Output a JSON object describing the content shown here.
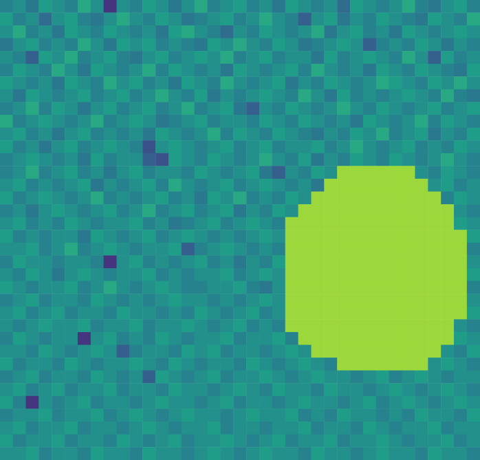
{
  "chart_data": {
    "type": "heatmap",
    "color": "viridis",
    "zlim": [
      0,
      20
    ],
    "tick_labels": false,
    "values": [
      [
        9,
        10,
        8,
        11,
        10,
        9,
        12,
        10,
        3,
        10,
        9,
        11,
        10,
        8,
        10,
        12,
        9,
        10,
        11,
        9,
        10,
        8,
        11,
        10,
        9,
        10,
        7,
        11,
        10,
        9,
        10,
        12,
        9,
        8,
        10,
        11,
        9
      ],
      [
        11,
        9,
        10,
        7,
        10,
        11,
        9,
        8,
        10,
        12,
        10,
        9,
        11,
        10,
        8,
        9,
        10,
        11,
        9,
        10,
        12,
        10,
        9,
        6,
        10,
        11,
        8,
        10,
        9,
        11,
        10,
        9,
        8,
        11,
        10,
        9,
        12
      ],
      [
        10,
        12,
        9,
        10,
        8,
        11,
        10,
        9,
        11,
        10,
        9,
        10,
        8,
        11,
        12,
        10,
        9,
        7,
        10,
        9,
        11,
        10,
        9,
        10,
        12,
        8,
        10,
        11,
        9,
        10,
        8,
        11,
        10,
        9,
        10,
        11,
        10
      ],
      [
        8,
        10,
        11,
        9,
        10,
        9,
        12,
        10,
        8,
        11,
        10,
        11,
        9,
        10,
        9,
        8,
        11,
        10,
        12,
        10,
        9,
        11,
        10,
        8,
        9,
        10,
        11,
        10,
        6,
        9,
        10,
        9,
        11,
        10,
        8,
        10,
        9
      ],
      [
        10,
        9,
        6,
        11,
        10,
        12,
        9,
        10,
        11,
        9,
        8,
        10,
        11,
        9,
        10,
        11,
        10,
        12,
        9,
        10,
        11,
        9,
        10,
        10,
        8,
        11,
        9,
        10,
        11,
        10,
        9,
        12,
        10,
        6,
        11,
        9,
        10
      ],
      [
        9,
        11,
        10,
        9,
        12,
        10,
        8,
        11,
        10,
        9,
        10,
        12,
        9,
        11,
        10,
        9,
        10,
        8,
        11,
        10,
        9,
        10,
        11,
        9,
        12,
        10,
        9,
        10,
        8,
        11,
        10,
        9,
        11,
        10,
        9,
        8,
        11
      ],
      [
        11,
        10,
        9,
        10,
        8,
        11,
        10,
        9,
        12,
        10,
        11,
        9,
        10,
        8,
        11,
        10,
        9,
        12,
        10,
        9,
        10,
        11,
        8,
        10,
        9,
        11,
        10,
        9,
        10,
        12,
        11,
        10,
        9,
        11,
        10,
        12,
        10
      ],
      [
        10,
        8,
        11,
        10,
        9,
        10,
        11,
        9,
        10,
        11,
        9,
        10,
        12,
        10,
        9,
        11,
        8,
        10,
        9,
        10,
        11,
        10,
        9,
        12,
        10,
        8,
        11,
        9,
        10,
        9,
        10,
        11,
        10,
        9,
        12,
        9,
        8
      ],
      [
        9,
        10,
        12,
        9,
        11,
        10,
        8,
        10,
        11,
        9,
        10,
        11,
        9,
        10,
        12,
        9,
        10,
        11,
        8,
        6,
        10,
        9,
        11,
        10,
        9,
        10,
        12,
        10,
        9,
        11,
        10,
        9,
        10,
        11,
        9,
        10,
        11
      ],
      [
        12,
        9,
        10,
        11,
        10,
        9,
        10,
        12,
        9,
        10,
        11,
        10,
        8,
        9,
        10,
        11,
        9,
        10,
        10,
        9,
        11,
        10,
        9,
        11,
        10,
        9,
        10,
        8,
        11,
        10,
        9,
        10,
        12,
        9,
        11,
        10,
        9
      ],
      [
        10,
        11,
        9,
        10,
        8,
        10,
        11,
        9,
        10,
        9,
        10,
        8,
        11,
        10,
        9,
        10,
        12,
        9,
        11,
        10,
        9,
        11,
        10,
        9,
        8,
        10,
        9,
        11,
        10,
        12,
        9,
        10,
        11,
        8,
        10,
        9,
        11
      ],
      [
        11,
        9,
        10,
        8,
        10,
        11,
        9,
        10,
        11,
        10,
        9,
        5,
        10,
        11,
        10,
        9,
        10,
        11,
        9,
        10,
        11,
        9,
        10,
        10,
        11,
        9,
        10,
        12,
        10,
        9,
        10,
        11,
        9,
        10,
        9,
        11,
        10
      ],
      [
        9,
        10,
        11,
        10,
        9,
        10,
        8,
        11,
        9,
        10,
        10,
        6,
        5,
        11,
        10,
        9,
        11,
        10,
        9,
        10,
        12,
        10,
        9,
        11,
        8,
        10,
        9,
        11,
        10,
        9,
        11,
        10,
        9,
        10,
        12,
        10,
        9
      ],
      [
        9,
        10,
        12,
        9,
        10,
        11,
        9,
        10,
        8,
        10,
        11,
        9,
        10,
        10,
        9,
        11,
        10,
        9,
        10,
        11,
        8,
        6,
        10,
        9,
        11,
        10,
        17,
        17,
        17,
        17,
        17,
        17,
        10,
        9,
        11,
        10,
        9
      ],
      [
        10,
        11,
        9,
        10,
        9,
        10,
        11,
        8,
        10,
        9,
        10,
        11,
        9,
        12,
        10,
        9,
        10,
        11,
        9,
        10,
        11,
        10,
        9,
        10,
        8,
        17,
        17,
        17,
        17,
        17,
        17,
        17,
        17,
        10,
        11,
        9,
        10
      ],
      [
        11,
        9,
        10,
        11,
        10,
        9,
        10,
        12,
        9,
        10,
        9,
        10,
        11,
        9,
        10,
        8,
        11,
        10,
        12,
        9,
        10,
        9,
        11,
        10,
        17,
        17,
        17,
        17,
        17,
        17,
        17,
        17,
        17,
        17,
        9,
        11,
        10
      ],
      [
        9,
        10,
        8,
        10,
        11,
        10,
        9,
        10,
        11,
        9,
        10,
        12,
        9,
        10,
        11,
        9,
        10,
        11,
        8,
        10,
        9,
        11,
        10,
        17,
        17,
        17,
        17,
        17,
        17,
        17,
        17,
        17,
        17,
        17,
        17,
        10,
        9
      ],
      [
        10,
        11,
        9,
        10,
        9,
        11,
        10,
        9,
        10,
        10,
        11,
        9,
        10,
        8,
        9,
        10,
        11,
        9,
        10,
        11,
        10,
        9,
        17,
        17,
        17,
        17,
        17,
        17,
        17,
        17,
        17,
        17,
        17,
        17,
        17,
        11,
        10
      ],
      [
        11,
        9,
        10,
        9,
        10,
        10,
        8,
        11,
        10,
        9,
        10,
        11,
        9,
        10,
        11,
        10,
        9,
        10,
        9,
        10,
        11,
        10,
        17,
        17,
        17,
        17,
        17,
        17,
        17,
        17,
        17,
        17,
        17,
        17,
        17,
        17,
        11
      ],
      [
        10,
        10,
        11,
        9,
        10,
        12,
        9,
        10,
        11,
        10,
        9,
        10,
        10,
        11,
        6,
        9,
        10,
        11,
        10,
        9,
        10,
        9,
        17,
        17,
        17,
        17,
        17,
        17,
        17,
        17,
        17,
        17,
        17,
        17,
        17,
        17,
        9
      ],
      [
        9,
        11,
        10,
        10,
        9,
        10,
        10,
        9,
        3,
        10,
        11,
        9,
        10,
        9,
        10,
        11,
        9,
        10,
        8,
        10,
        9,
        11,
        17,
        17,
        17,
        17,
        17,
        17,
        17,
        17,
        17,
        17,
        17,
        17,
        17,
        17,
        10
      ],
      [
        10,
        9,
        11,
        10,
        8,
        10,
        11,
        10,
        9,
        10,
        10,
        11,
        9,
        10,
        9,
        10,
        10,
        11,
        9,
        10,
        11,
        10,
        17,
        17,
        17,
        17,
        17,
        17,
        17,
        17,
        17,
        17,
        17,
        17,
        17,
        17,
        11
      ],
      [
        11,
        10,
        9,
        10,
        10,
        11,
        9,
        10,
        12,
        10,
        9,
        10,
        11,
        10,
        9,
        9,
        10,
        10,
        11,
        9,
        8,
        10,
        17,
        17,
        17,
        17,
        17,
        17,
        17,
        17,
        17,
        17,
        17,
        17,
        17,
        17,
        9
      ],
      [
        9,
        10,
        11,
        9,
        10,
        10,
        9,
        11,
        10,
        9,
        10,
        9,
        10,
        11,
        10,
        10,
        9,
        10,
        9,
        10,
        11,
        10,
        17,
        17,
        17,
        17,
        17,
        17,
        17,
        17,
        17,
        17,
        17,
        17,
        17,
        17,
        10
      ],
      [
        10,
        11,
        9,
        10,
        11,
        9,
        10,
        10,
        9,
        11,
        10,
        10,
        9,
        10,
        9,
        11,
        10,
        9,
        10,
        11,
        9,
        10,
        17,
        17,
        17,
        17,
        17,
        17,
        17,
        17,
        17,
        17,
        17,
        17,
        17,
        17,
        11
      ],
      [
        10,
        9,
        10,
        11,
        10,
        10,
        11,
        9,
        10,
        10,
        11,
        9,
        10,
        10,
        11,
        10,
        9,
        10,
        11,
        9,
        10,
        9,
        17,
        17,
        17,
        17,
        17,
        17,
        17,
        17,
        17,
        17,
        17,
        17,
        17,
        10,
        9
      ],
      [
        9,
        11,
        10,
        9,
        10,
        10,
        3,
        10,
        11,
        9,
        10,
        9,
        11,
        10,
        9,
        10,
        10,
        11,
        9,
        10,
        10,
        11,
        9,
        17,
        17,
        17,
        17,
        17,
        17,
        17,
        17,
        17,
        17,
        17,
        17,
        11,
        10
      ],
      [
        10,
        10,
        9,
        11,
        10,
        9,
        10,
        11,
        10,
        6,
        9,
        10,
        10,
        9,
        11,
        10,
        11,
        9,
        10,
        10,
        9,
        10,
        11,
        10,
        17,
        17,
        17,
        17,
        17,
        17,
        17,
        17,
        17,
        17,
        10,
        9,
        11
      ],
      [
        11,
        9,
        10,
        10,
        9,
        11,
        10,
        9,
        10,
        10,
        11,
        10,
        9,
        11,
        10,
        9,
        10,
        10,
        9,
        11,
        10,
        9,
        10,
        11,
        10,
        9,
        17,
        17,
        17,
        17,
        17,
        17,
        17,
        10,
        11,
        10,
        9
      ],
      [
        9,
        10,
        11,
        9,
        10,
        10,
        9,
        11,
        10,
        9,
        10,
        6,
        11,
        10,
        9,
        10,
        11,
        9,
        10,
        10,
        11,
        10,
        9,
        10,
        11,
        10,
        10,
        9,
        10,
        11,
        9,
        10,
        11,
        10,
        9,
        10,
        10
      ],
      [
        10,
        11,
        9,
        10,
        11,
        9,
        10,
        10,
        11,
        9,
        10,
        10,
        9,
        11,
        10,
        10,
        9,
        10,
        11,
        10,
        9,
        11,
        10,
        10,
        9,
        11,
        10,
        10,
        9,
        10,
        11,
        10,
        9,
        10,
        11,
        10,
        9
      ],
      [
        11,
        9,
        3,
        10,
        9,
        10,
        11,
        9,
        10,
        10,
        9,
        10,
        11,
        10,
        10,
        9,
        10,
        11,
        9,
        10,
        10,
        9,
        10,
        11,
        10,
        10,
        9,
        10,
        11,
        9,
        10,
        11,
        10,
        9,
        10,
        11,
        10
      ],
      [
        9,
        10,
        10,
        11,
        9,
        10,
        10,
        11,
        9,
        10,
        11,
        10,
        9,
        10,
        11,
        10,
        10,
        9,
        10,
        11,
        10,
        10,
        11,
        9,
        10,
        9,
        11,
        10,
        10,
        9,
        10,
        9,
        11,
        10,
        10,
        9,
        11
      ],
      [
        10,
        11,
        9,
        10,
        10,
        11,
        9,
        10,
        10,
        9,
        10,
        11,
        10,
        9,
        10,
        10,
        11,
        9,
        10,
        10,
        9,
        10,
        10,
        11,
        9,
        10,
        10,
        9,
        11,
        10,
        9,
        10,
        10,
        11,
        9,
        10,
        10
      ],
      [
        11,
        9,
        10,
        10,
        11,
        9,
        10,
        10,
        9,
        11,
        10,
        9,
        10,
        11,
        9,
        10,
        10,
        11,
        10,
        9,
        10,
        11,
        9,
        10,
        10,
        11,
        9,
        10,
        10,
        11,
        10,
        9,
        10,
        10,
        11,
        9,
        10
      ],
      [
        10,
        10,
        11,
        9,
        10,
        10,
        9,
        11,
        10,
        10,
        9,
        11,
        10,
        10,
        9,
        10,
        11,
        10,
        9,
        10,
        11,
        10,
        10,
        9,
        11,
        10,
        10,
        9,
        10,
        11,
        10,
        10,
        9,
        11,
        10,
        10,
        9
      ]
    ]
  }
}
